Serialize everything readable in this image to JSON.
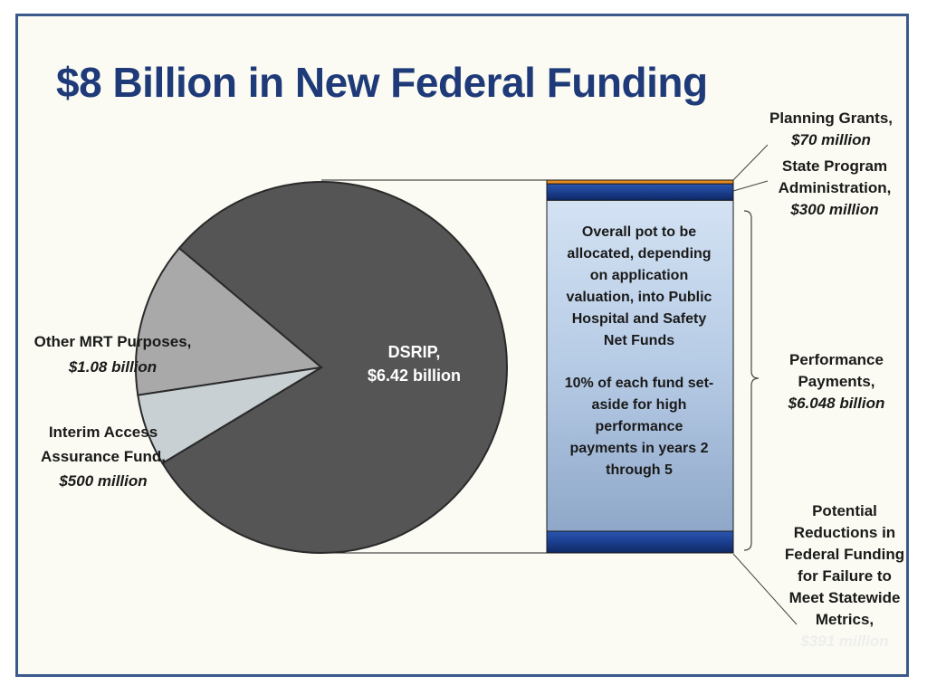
{
  "slide": {
    "title": "$8 Billion in New Federal Funding"
  },
  "colors": {
    "dsrip": "#555555",
    "other_mrt": "#a9a9a9",
    "interim": "#c8d0d4",
    "bar_fill": "#b8cde6",
    "bar_dark": "#1b3f8f",
    "bar_orange": "#e58a1f",
    "title": "#1f3a78"
  },
  "chart_data": [
    {
      "type": "pie",
      "slices": [
        {
          "label": "DSRIP",
          "value": 6.42,
          "unit": "billion",
          "amount_text": "$6.42 billion"
        },
        {
          "label": "Other MRT Purposes",
          "value": 1.08,
          "unit": "billion",
          "amount_text": "$1.08 billion"
        },
        {
          "label": "Interim Access Assurance Fund",
          "value": 0.5,
          "unit": "billion",
          "amount_text": "$500 million"
        }
      ]
    },
    {
      "type": "bar",
      "stacked": true,
      "segments": [
        {
          "label": "Planning Grants",
          "value": 70,
          "unit": "million",
          "amount_text": "$70 million"
        },
        {
          "label": "State Program Administration",
          "value": 300,
          "unit": "million",
          "amount_text": "$300 million"
        },
        {
          "label": "Performance Payments",
          "value": 6048,
          "unit": "million",
          "amount_text": "$6.048 billion"
        },
        {
          "label": "Potential Reductions in Federal Funding for Failure to Meet Statewide Metrics",
          "value": 391,
          "unit": "million",
          "amount_text": "$391 million"
        }
      ],
      "annotation": {
        "line1": "Overall pot to be",
        "line2": "allocated, depending",
        "line3": "on application",
        "line4": "valuation, into Public",
        "line5": "Hospital and Safety",
        "line6": "Net Funds",
        "line7": "10% of each fund set-",
        "line8": "aside for high",
        "line9": "performance",
        "line10": "payments in years 2",
        "line11": "through 5"
      }
    }
  ],
  "labels": {
    "dsrip": {
      "name": "DSRIP,",
      "amount": "$6.42 billion"
    },
    "other_mrt": {
      "line1": "Other MRT Purposes,",
      "amount": "$1.08 billion"
    },
    "interim": {
      "line1": "Interim Access",
      "line2": "Assurance Fund,",
      "amount": "$500 million"
    },
    "planning": {
      "line1": "Planning Grants,",
      "amount": "$70 million"
    },
    "state_admin": {
      "line1": "State Program",
      "line2": "Administration,",
      "amount": "$300 million"
    },
    "performance": {
      "line1": "Performance",
      "line2": "Payments,",
      "amount": "$6.048 billion"
    },
    "reductions": {
      "line1": "Potential",
      "line2": "Reductions in",
      "line3": "Federal Funding",
      "line4": "for Failure to",
      "line5": "Meet Statewide",
      "line6": "Metrics,",
      "amount": "$391 million"
    }
  }
}
